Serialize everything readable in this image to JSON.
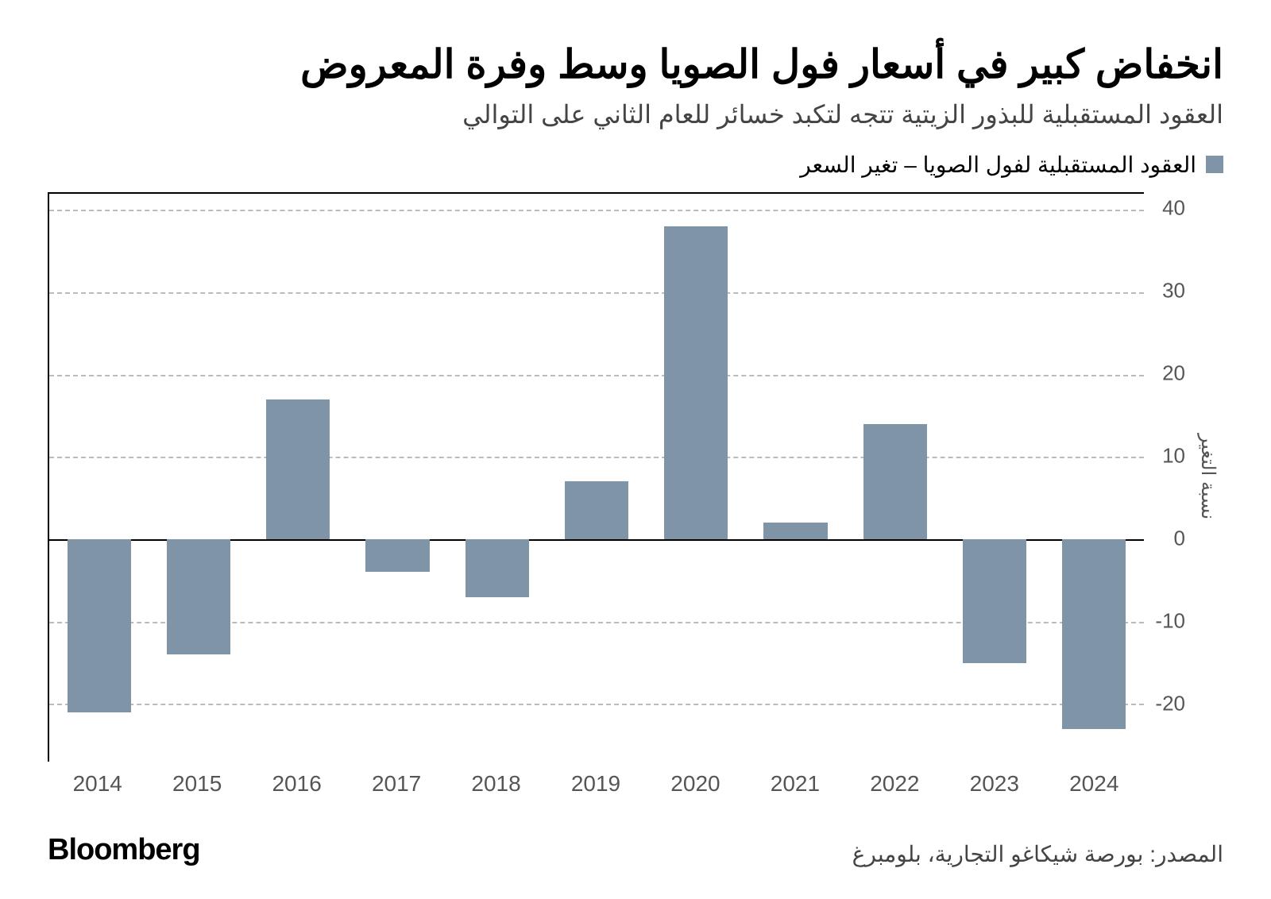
{
  "title": "انخفاض كبير في أسعار فول الصويا وسط وفرة المعروض",
  "subtitle": "العقود المستقبلية للبذور الزيتية تتجه لتكبد خسائر للعام الثاني على التوالي",
  "legend": {
    "label": "العقود المستقبلية لفول الصويا – تغير السعر",
    "color": "#8094a8"
  },
  "chart": {
    "type": "bar",
    "y_axis_label": "نسبة التغير",
    "ylim": [
      -27,
      42
    ],
    "y_ticks": [
      -20,
      -10,
      0,
      10,
      20,
      30,
      40
    ],
    "grid_color": "#bbbbbb",
    "zero_color": "#000000",
    "axis_color": "#000000",
    "background_color": "#ffffff",
    "bar_color": "#8094a8",
    "bar_width_ratio": 0.64,
    "categories": [
      "2014",
      "2015",
      "2016",
      "2017",
      "2018",
      "2019",
      "2020",
      "2021",
      "2022",
      "2023",
      "2024"
    ],
    "values": [
      -21,
      -14,
      17,
      -4,
      -7,
      7,
      38,
      2,
      14,
      -15,
      -23
    ],
    "tick_fontsize": 26,
    "label_fontsize": 28,
    "title_fontsize": 50,
    "subtitle_fontsize": 32
  },
  "footer": {
    "source": "المصدر: بورصة شيكاغو التجارية، بلومبرغ",
    "brand": "Bloomberg"
  }
}
